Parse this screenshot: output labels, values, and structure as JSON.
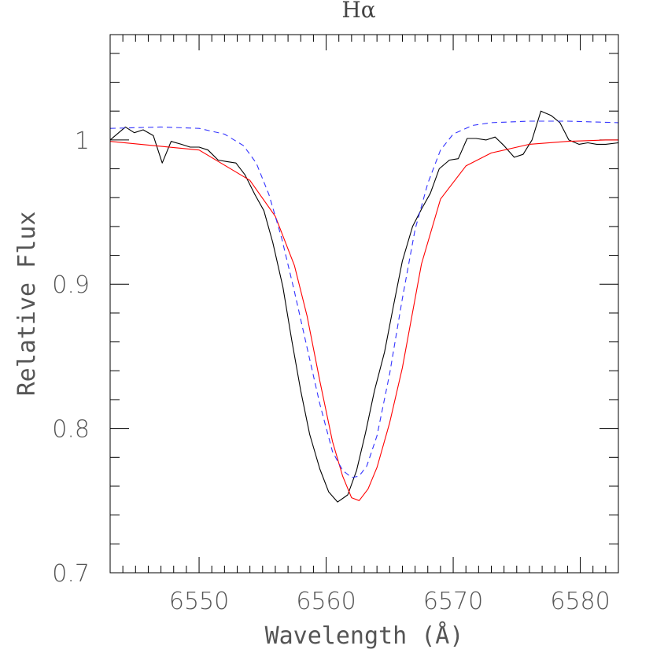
{
  "chart_data": {
    "type": "line",
    "title": "Hα",
    "xlabel": "Wavelength (Å)",
    "ylabel": "Relative Flux",
    "xlim": [
      6543,
      6583
    ],
    "ylim": [
      0.7,
      1.073
    ],
    "x_ticks": [
      6550,
      6560,
      6570,
      6580
    ],
    "x_tick_labels": [
      "6550",
      "6560",
      "6570",
      "6580"
    ],
    "y_ticks": [
      0.7,
      0.8,
      0.9,
      1.0
    ],
    "y_tick_labels": [
      "0.7",
      "0.8",
      "0.9",
      "1"
    ],
    "x_minor_step": 1,
    "y_minor_step": 0.02,
    "grid": false,
    "series": [
      {
        "style": "solid",
        "color": "#000000",
        "x": [
          6543.0,
          6544.2,
          6544.9,
          6545.6,
          6546.4,
          6547.1,
          6547.8,
          6548.6,
          6549.3,
          6550.0,
          6550.7,
          6551.5,
          6552.2,
          6552.9,
          6553.6,
          6554.4,
          6555.1,
          6555.8,
          6556.6,
          6557.3,
          6558.0,
          6558.7,
          6559.5,
          6560.2,
          6560.9,
          6561.7,
          6562.4,
          6563.1,
          6563.8,
          6564.6,
          6565.3,
          6566.0,
          6566.8,
          6567.5,
          6568.2,
          6568.9,
          6569.7,
          6570.4,
          6571.1,
          6571.8,
          6572.6,
          6573.3,
          6574.0,
          6574.8,
          6575.5,
          6576.2,
          6576.9,
          6577.7,
          6578.4,
          6579.1,
          6579.9,
          6580.6,
          6581.3,
          6582.0,
          6583.0
        ],
        "y": [
          1.0,
          1.009,
          1.005,
          1.007,
          1.003,
          0.984,
          0.999,
          0.997,
          0.995,
          0.995,
          0.993,
          0.986,
          0.985,
          0.984,
          0.976,
          0.962,
          0.951,
          0.929,
          0.898,
          0.861,
          0.826,
          0.796,
          0.772,
          0.756,
          0.749,
          0.754,
          0.771,
          0.797,
          0.826,
          0.853,
          0.885,
          0.916,
          0.94,
          0.952,
          0.963,
          0.98,
          0.986,
          0.987,
          1.001,
          1.001,
          1.0,
          1.002,
          0.996,
          0.988,
          0.99,
          1.0,
          1.02,
          1.017,
          1.012,
          1.0,
          0.997,
          0.998,
          0.997,
          0.997,
          0.998
        ]
      },
      {
        "style": "solid",
        "color": "#ff0000",
        "x": [
          6543.0,
          6550.0,
          6554.0,
          6556.0,
          6557.5,
          6558.5,
          6559.5,
          6560.5,
          6561.3,
          6562.0,
          6562.6,
          6563.3,
          6564.0,
          6565.0,
          6566.0,
          6567.5,
          6569.0,
          6571.0,
          6573.0,
          6576.0,
          6579.0,
          6582.0,
          6583.0
        ],
        "y": [
          0.999,
          0.993,
          0.972,
          0.947,
          0.913,
          0.878,
          0.833,
          0.791,
          0.767,
          0.752,
          0.75,
          0.758,
          0.773,
          0.804,
          0.842,
          0.914,
          0.959,
          0.982,
          0.991,
          0.997,
          0.999,
          1.0,
          1.0
        ]
      },
      {
        "style": "dashed",
        "color": "#3333ff",
        "x": [
          6543.0,
          6547.0,
          6550.0,
          6552.0,
          6553.5,
          6554.5,
          6555.5,
          6556.5,
          6557.5,
          6558.5,
          6559.5,
          6560.5,
          6561.3,
          6562.0,
          6562.6,
          6563.2,
          6564.0,
          6565.0,
          6566.0,
          6567.0,
          6568.0,
          6569.0,
          6570.0,
          6571.5,
          6573.0,
          6576.0,
          6579.0,
          6583.0
        ],
        "y": [
          1.008,
          1.009,
          1.008,
          1.004,
          0.996,
          0.984,
          0.962,
          0.932,
          0.895,
          0.856,
          0.817,
          0.784,
          0.771,
          0.766,
          0.767,
          0.774,
          0.795,
          0.838,
          0.89,
          0.938,
          0.97,
          0.993,
          1.004,
          1.01,
          1.012,
          1.013,
          1.013,
          1.012
        ]
      }
    ]
  }
}
